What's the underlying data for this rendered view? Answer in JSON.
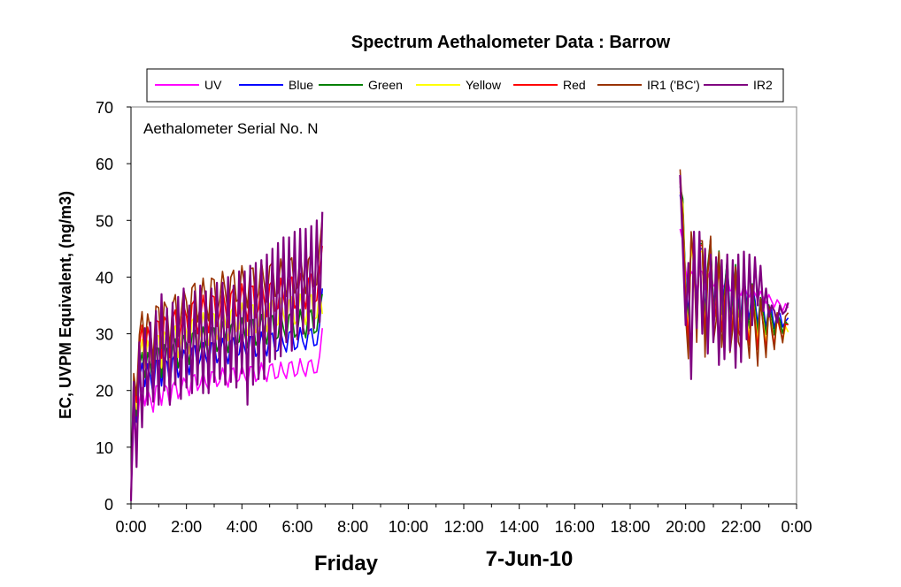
{
  "chart_data": {
    "type": "line",
    "title": "Spectrum Aethalometer Data  :  Barrow",
    "annotation": "Aethalometer  Serial No. N",
    "ylabel": "EC, UVPM  Equivalent, (ng/m3)",
    "xlabel_left": "Friday",
    "xlabel_center": "7-Jun-10",
    "ylim": [
      0,
      70
    ],
    "yticks": [
      "0",
      "10",
      "20",
      "30",
      "40",
      "50",
      "60",
      "70"
    ],
    "xlim_hours": [
      0,
      24
    ],
    "xticks": [
      "0:00",
      "2:00",
      "4:00",
      "6:00",
      "8:00",
      "10:00",
      "12:00",
      "14:00",
      "16:00",
      "18:00",
      "20:00",
      "22:00",
      "0:00"
    ],
    "grid": false,
    "legend_position": "top",
    "x_hours": [
      0.0,
      0.1,
      0.2,
      0.3,
      0.4,
      0.5,
      0.6,
      0.7,
      0.8,
      0.9,
      1.0,
      1.1,
      1.2,
      1.3,
      1.4,
      1.5,
      1.6,
      1.7,
      1.8,
      1.9,
      2.0,
      2.1,
      2.2,
      2.3,
      2.4,
      2.5,
      2.6,
      2.7,
      2.8,
      2.9,
      3.0,
      3.1,
      3.2,
      3.3,
      3.4,
      3.5,
      3.6,
      3.7,
      3.8,
      3.9,
      4.0,
      4.1,
      4.2,
      4.3,
      4.4,
      4.5,
      4.6,
      4.7,
      4.8,
      4.9,
      5.0,
      5.1,
      5.2,
      5.3,
      5.4,
      5.5,
      5.6,
      5.7,
      5.8,
      5.9,
      6.0,
      6.1,
      6.2,
      6.3,
      6.4,
      6.5,
      6.6,
      6.7,
      6.8,
      6.9,
      19.8,
      19.9,
      20.0,
      20.1,
      20.2,
      20.3,
      20.4,
      20.5,
      20.6,
      20.7,
      20.8,
      20.9,
      21.0,
      21.1,
      21.2,
      21.3,
      21.4,
      21.5,
      21.6,
      21.7,
      21.8,
      21.9,
      22.0,
      22.1,
      22.2,
      22.3,
      22.4,
      22.5,
      22.6,
      22.7,
      22.8,
      22.9,
      23.0,
      23.1,
      23.2,
      23.3,
      23.4,
      23.5,
      23.6,
      23.7,
      23.8,
      23.9
    ],
    "series": [
      {
        "name": "UV",
        "color": "#ff00ff",
        "values": [
          1.0,
          14.3,
          11.9,
          18.1,
          20.5,
          17.3,
          20.3,
          18.6,
          16.2,
          20.8,
          20.8,
          17.4,
          21.1,
          20.5,
          17.4,
          20.9,
          21.7,
          18.6,
          20.0,
          22.2,
          21.2,
          19.1,
          22.4,
          22.8,
          20.0,
          21.1,
          23.3,
          21.2,
          20.1,
          23.3,
          23.2,
          20.7,
          21.6,
          24.0,
          22.3,
          20.6,
          23.6,
          24.0,
          21.4,
          21.9,
          24.5,
          22.5,
          21.2,
          24.2,
          24.2,
          21.6,
          22.3,
          24.9,
          23.0,
          21.6,
          24.4,
          24.7,
          22.1,
          22.4,
          25.0,
          23.2,
          22.1,
          24.8,
          25.1,
          22.5,
          23.0,
          25.6,
          23.6,
          22.5,
          25.0,
          25.4,
          23.1,
          23.2,
          26.1,
          31.0,
          48.5,
          46.4,
          41.3,
          38.3,
          41.0,
          40.2,
          37.7,
          41.0,
          41.0,
          37.8,
          39.8,
          41.3,
          38.4,
          38.9,
          40.3,
          37.8,
          38.6,
          40.1,
          37.6,
          37.7,
          39.4,
          37.5,
          36.8,
          38.8,
          37.2,
          36.5,
          38.2,
          37.1,
          36.1,
          37.5,
          36.4,
          35.4,
          36.9,
          35.8,
          34.7,
          36.0,
          35.2,
          34.0,
          35.3,
          34.6
        ]
      },
      {
        "name": "Blue",
        "color": "#0000ff",
        "values": [
          1.0,
          17.4,
          14.4,
          22.0,
          24.8,
          20.7,
          24.7,
          22.5,
          19.2,
          25.3,
          25.3,
          20.8,
          25.7,
          25.0,
          20.9,
          25.5,
          26.6,
          22.3,
          24.3,
          27.1,
          25.8,
          22.8,
          27.4,
          27.9,
          24.0,
          25.5,
          28.4,
          25.8,
          24.1,
          28.4,
          28.3,
          24.9,
          26.2,
          29.2,
          27.1,
          24.7,
          28.7,
          29.3,
          26.0,
          26.4,
          29.8,
          27.4,
          25.5,
          29.5,
          29.5,
          26.0,
          26.9,
          30.3,
          27.9,
          26.1,
          29.7,
          30.1,
          26.8,
          27.1,
          30.4,
          28.2,
          26.8,
          30.2,
          30.6,
          27.2,
          27.7,
          31.1,
          28.6,
          27.2,
          30.4,
          30.9,
          27.9,
          28.1,
          31.7,
          38.0,
          54.5,
          51.4,
          38.9,
          33.3,
          45.8,
          42.3,
          34.9,
          45.0,
          45.0,
          33.6,
          41.8,
          45.7,
          35.8,
          37.6,
          43.7,
          34.9,
          38.0,
          42.9,
          33.6,
          35.9,
          41.6,
          35.0,
          33.4,
          40.5,
          35.6,
          32.5,
          38.6,
          35.9,
          31.6,
          36.2,
          34.7,
          31.1,
          34.8,
          34.3,
          31.0,
          33.4,
          33.6,
          31.2,
          32.2,
          32.8
        ]
      },
      {
        "name": "Green",
        "color": "#008000",
        "values": [
          1.0,
          18.6,
          15.5,
          23.9,
          26.7,
          22.3,
          26.7,
          24.5,
          20.7,
          27.6,
          27.4,
          22.3,
          28.1,
          27.3,
          22.4,
          27.7,
          29.1,
          24.0,
          26.4,
          29.7,
          28.2,
          24.6,
          29.9,
          30.6,
          25.9,
          27.7,
          31.2,
          28.2,
          26.0,
          31.1,
          31.0,
          26.9,
          28.4,
          32.1,
          29.6,
          26.7,
          31.4,
          32.2,
          28.2,
          28.6,
          32.8,
          30.0,
          27.5,
          32.4,
          32.5,
          28.0,
          29.2,
          33.4,
          30.6,
          28.2,
          32.7,
          33.2,
          28.9,
          29.4,
          33.6,
          30.9,
          28.9,
          33.3,
          33.8,
          29.4,
          30.1,
          34.3,
          31.4,
          29.3,
          33.5,
          34.2,
          30.1,
          30.5,
          35.0,
          37.0,
          56.0,
          53.8,
          38.4,
          31.9,
          46.8,
          43.2,
          33.6,
          45.9,
          45.9,
          32.0,
          42.1,
          46.8,
          34.2,
          36.3,
          44.6,
          33.4,
          36.9,
          43.5,
          32.0,
          34.5,
          42.2,
          33.6,
          31.9,
          41.1,
          34.4,
          31.0,
          38.8,
          34.8,
          30.1,
          36.4,
          33.6,
          29.9,
          35.1,
          33.0,
          29.8,
          33.5,
          32.4,
          30.1,
          32.1,
          31.6
        ]
      },
      {
        "name": "Yellow",
        "color": "#ffff00",
        "values": [
          1.0,
          20.0,
          16.7,
          25.8,
          29.0,
          24.0,
          28.8,
          26.5,
          22.3,
          29.8,
          29.6,
          24.0,
          30.3,
          29.5,
          24.1,
          30.0,
          31.4,
          25.8,
          28.5,
          32.1,
          30.4,
          26.5,
          32.3,
          33.0,
          27.9,
          29.9,
          33.7,
          30.4,
          28.0,
          33.6,
          33.5,
          29.0,
          30.7,
          34.7,
          32.0,
          28.8,
          33.9,
          34.8,
          30.4,
          30.9,
          35.4,
          32.4,
          29.7,
          35.0,
          35.1,
          30.2,
          31.5,
          36.1,
          33.1,
          30.4,
          35.3,
          35.9,
          31.2,
          31.7,
          36.3,
          33.4,
          31.2,
          35.9,
          36.5,
          31.7,
          32.4,
          37.0,
          33.9,
          31.6,
          36.2,
          36.9,
          32.5,
          32.9,
          37.8,
          33.5,
          55.0,
          52.9,
          36.7,
          30.3,
          45.4,
          41.9,
          31.9,
          44.5,
          44.5,
          30.3,
          40.8,
          45.3,
          32.4,
          34.7,
          43.2,
          31.6,
          35.3,
          42.2,
          30.2,
          32.9,
          41.0,
          31.9,
          30.3,
          40.0,
          32.7,
          29.4,
          37.8,
          33.2,
          28.5,
          35.5,
          32.1,
          28.2,
          34.2,
          31.5,
          27.5,
          32.6,
          31.0,
          28.6,
          31.3,
          30.3
        ]
      },
      {
        "name": "Red",
        "color": "#ff0000",
        "values": [
          1.0,
          21.5,
          17.9,
          27.8,
          31.5,
          25.8,
          31.2,
          28.6,
          23.9,
          32.4,
          32.1,
          25.7,
          33.0,
          32.0,
          25.8,
          32.6,
          34.2,
          27.7,
          30.9,
          35.0,
          33.1,
          28.5,
          35.2,
          36.0,
          30.0,
          32.5,
          36.8,
          33.0,
          30.2,
          36.8,
          36.5,
          31.3,
          33.4,
          37.9,
          34.9,
          31.1,
          37.0,
          38.1,
          33.1,
          33.6,
          38.8,
          35.4,
          32.2,
          38.3,
          38.4,
          32.8,
          34.4,
          39.5,
          36.2,
          33.0,
          38.7,
          39.3,
          34.0,
          34.5,
          39.8,
          36.5,
          34.0,
          39.4,
          40.0,
          34.5,
          35.4,
          40.6,
          37.1,
          34.4,
          39.7,
          40.5,
          35.5,
          35.9,
          41.5,
          45.5,
          57.0,
          51.0,
          35.8,
          28.6,
          47.4,
          42.4,
          30.8,
          45.6,
          45.6,
          29.0,
          41.1,
          46.5,
          31.6,
          34.5,
          44.0,
          30.3,
          35.1,
          42.8,
          28.8,
          32.3,
          41.7,
          30.7,
          29.0,
          40.4,
          31.9,
          28.0,
          38.0,
          32.6,
          27.2,
          35.6,
          31.5,
          27.1,
          34.6,
          31.1,
          27.9,
          33.0,
          30.8,
          29.0,
          31.7,
          31.6
        ]
      },
      {
        "name": "IR1 ('BC')",
        "color": "#993300",
        "values": [
          1.0,
          23.0,
          19.1,
          29.8,
          33.9,
          27.6,
          33.5,
          30.7,
          25.5,
          34.9,
          34.6,
          27.4,
          35.6,
          34.5,
          27.5,
          35.1,
          36.9,
          29.6,
          33.2,
          37.8,
          35.7,
          30.4,
          38.1,
          38.9,
          32.1,
          34.9,
          39.8,
          35.6,
          32.3,
          39.8,
          39.5,
          33.5,
          35.9,
          41.0,
          37.7,
          33.3,
          40.0,
          41.2,
          35.7,
          36.2,
          42.0,
          38.2,
          34.6,
          41.5,
          41.6,
          35.3,
          37.1,
          42.9,
          39.1,
          35.6,
          41.9,
          42.6,
          36.6,
          37.2,
          43.2,
          39.4,
          36.6,
          42.7,
          43.4,
          37.2,
          38.2,
          44.1,
          40.1,
          37.1,
          43.1,
          44.0,
          38.3,
          38.7,
          45.2,
          50.5,
          59.0,
          50.5,
          33.0,
          25.6,
          48.0,
          42.7,
          28.5,
          46.4,
          46.4,
          25.9,
          40.5,
          47.2,
          28.5,
          32.2,
          44.4,
          27.6,
          33.2,
          43.0,
          26.7,
          30.8,
          41.8,
          28.6,
          27.2,
          40.6,
          30.8,
          25.7,
          38.6,
          31.6,
          24.3,
          36.2,
          31.2,
          25.8,
          34.8,
          30.6,
          27.2,
          33.7,
          31.2,
          28.4,
          33.1,
          33.7
        ]
      },
      {
        "name": "IR2",
        "color": "#800080",
        "values": [
          0.5,
          21.5,
          6.5,
          28.5,
          13.5,
          31.0,
          17.5,
          32.0,
          18.0,
          34.0,
          17.5,
          37.0,
          20.0,
          34.5,
          17.5,
          35.5,
          21.0,
          36.5,
          18.5,
          38.0,
          20.5,
          35.0,
          19.5,
          37.5,
          21.0,
          38.5,
          19.5,
          37.5,
          19.5,
          38.0,
          21.5,
          39.0,
          22.0,
          39.0,
          21.0,
          40.0,
          21.5,
          38.5,
          20.5,
          41.0,
          23.0,
          41.0,
          17.5,
          42.0,
          21.0,
          42.5,
          22.0,
          43.0,
          22.0,
          44.0,
          25.0,
          45.0,
          25.5,
          46.0,
          26.0,
          47.0,
          28.5,
          47.0,
          27.0,
          48.0,
          29.0,
          48.5,
          30.0,
          48.5,
          30.0,
          49.0,
          31.0,
          50.0,
          32.0,
          51.5,
          58.0,
          45.0,
          31.5,
          42.5,
          22.0,
          48.0,
          31.0,
          48.0,
          30.0,
          45.0,
          26.5,
          44.0,
          28.5,
          43.5,
          24.5,
          43.0,
          25.5,
          44.0,
          27.0,
          43.0,
          24.0,
          44.0,
          25.0,
          44.5,
          29.0,
          44.0,
          31.5,
          43.5,
          35.0,
          42.0,
          34.0,
          38.0,
          33.0,
          35.0,
          34.0,
          32.0,
          35.0,
          33.5,
          34.0,
          35.5
        ]
      }
    ]
  }
}
